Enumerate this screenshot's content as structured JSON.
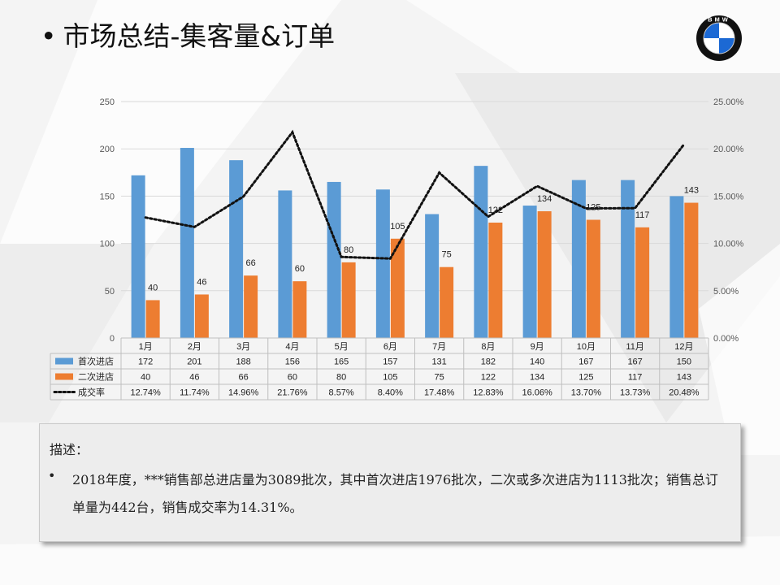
{
  "slide": {
    "bullet": "•",
    "title": "市场总结-集客量&订单"
  },
  "logo": {
    "letters": "BMW",
    "colors": {
      "blue": "#1c69d4",
      "white": "#ffffff",
      "ring": "#111111"
    }
  },
  "chart_data": {
    "type": "bar",
    "categories": [
      "1月",
      "2月",
      "3月",
      "4月",
      "5月",
      "6月",
      "7月",
      "8月",
      "9月",
      "10月",
      "11月",
      "12月"
    ],
    "series": [
      {
        "name": "首次进店",
        "kind": "bar",
        "axis": "left",
        "color": "#5b9bd5",
        "values": [
          172,
          201,
          188,
          156,
          165,
          157,
          131,
          182,
          140,
          167,
          167,
          150
        ]
      },
      {
        "name": "二次进店",
        "kind": "bar",
        "axis": "left",
        "color": "#ed7d31",
        "values": [
          40,
          46,
          66,
          60,
          80,
          105,
          75,
          122,
          134,
          125,
          117,
          143
        ],
        "labels": [
          "40",
          "46",
          "66",
          "60",
          "80",
          "105",
          "75",
          "122",
          "134",
          "125",
          "117",
          "143"
        ]
      },
      {
        "name": "成交率",
        "kind": "line",
        "axis": "right",
        "color": "#111111",
        "values": [
          12.74,
          11.74,
          14.96,
          21.76,
          8.57,
          8.4,
          17.48,
          12.83,
          16.06,
          13.7,
          13.73,
          20.48
        ],
        "labels": [
          "12.74%",
          "11.74%",
          "14.96%",
          "21.76%",
          "8.57%",
          "8.40%",
          "17.48%",
          "12.83%",
          "16.06%",
          "13.70%",
          "13.73%",
          "20.48%"
        ]
      }
    ],
    "table_rows": [
      [
        "172",
        "201",
        "188",
        "156",
        "165",
        "157",
        "131",
        "182",
        "140",
        "167",
        "167",
        "150"
      ],
      [
        "40",
        "46",
        "66",
        "60",
        "80",
        "105",
        "75",
        "122",
        "134",
        "125",
        "117",
        "143"
      ],
      [
        "12.74%",
        "11.74%",
        "14.96%",
        "21.76%",
        "8.57%",
        "8.40%",
        "17.48%",
        "12.83%",
        "16.06%",
        "13.70%",
        "13.73%",
        "20.48%"
      ]
    ],
    "ylim": [
      0,
      250
    ],
    "y2lim": [
      0,
      25
    ],
    "yticks": [
      "0",
      "50",
      "100",
      "150",
      "200",
      "250"
    ],
    "y2ticks": [
      "0.00%",
      "5.00%",
      "10.00%",
      "15.00%",
      "20.00%",
      "25.00%"
    ],
    "grid": true,
    "legend": "data-table"
  },
  "description": {
    "heading": "描述：",
    "bullet": "•",
    "text": "2018年度，***销售部总进店量为3089批次，其中首次进店1976批次，二次或多次进店为1113批次；销售总订单量为442台，销售成交率为14.31%。"
  }
}
